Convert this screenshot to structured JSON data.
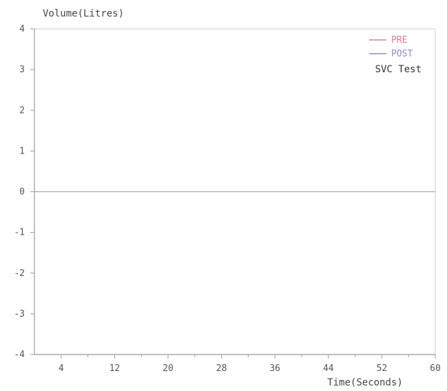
{
  "chart_data": {
    "type": "line",
    "title": "",
    "xlabel": "Time(Seconds)",
    "ylabel": "Volume(Litres)",
    "xlim": [
      0,
      60
    ],
    "ylim": [
      -4,
      4
    ],
    "x_ticks": [
      4,
      12,
      20,
      28,
      36,
      44,
      52,
      60
    ],
    "y_ticks": [
      4,
      3,
      2,
      1,
      0,
      -1,
      -2,
      -3,
      -4
    ],
    "grid": false,
    "legend_position": "top-right",
    "series": [
      {
        "name": "PRE",
        "color": "#e07a9a",
        "x": [],
        "y": []
      },
      {
        "name": "POST",
        "color": "#8a8ad0",
        "x": [],
        "y": []
      }
    ],
    "annotations": [
      "SVC Test"
    ],
    "zero_line": true
  },
  "colors": {
    "axis": "#999999",
    "zero_line": "#aaaaaa",
    "plot_border": "#cccccc"
  }
}
